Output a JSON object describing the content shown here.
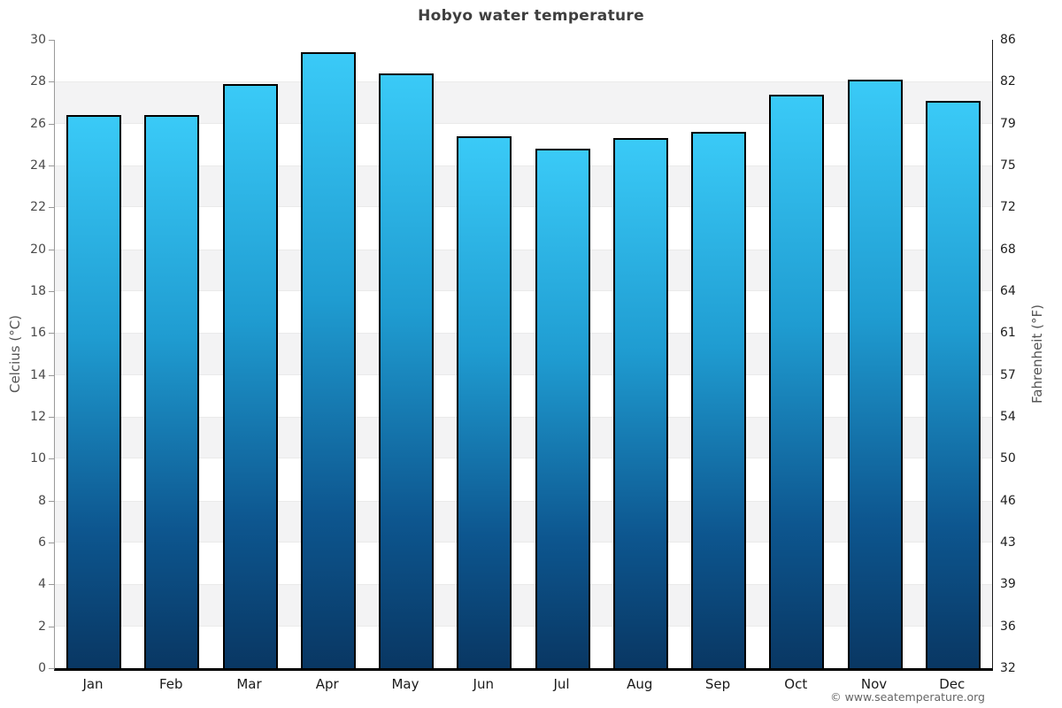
{
  "page": {
    "background": "#ffffff"
  },
  "title": "Hobyo water temperature",
  "footer": {
    "attribution": "© www.seatemperature.org"
  },
  "chart_data": {
    "type": "bar",
    "title": "Hobyo water temperature",
    "categories": [
      "Jan",
      "Feb",
      "Mar",
      "Apr",
      "May",
      "Jun",
      "Jul",
      "Aug",
      "Sep",
      "Oct",
      "Nov",
      "Dec"
    ],
    "series": [
      {
        "name": "Water temperature",
        "unit": "°C",
        "values": [
          26.4,
          26.4,
          27.9,
          29.4,
          28.4,
          25.4,
          24.8,
          25.3,
          25.6,
          27.4,
          28.1,
          27.1
        ]
      }
    ],
    "xlabel": "",
    "ylabel_left": "Celcius (°C)",
    "ylabel_right": "Fahrenheit (°F)",
    "ylim_celsius": [
      0,
      30
    ],
    "yticks_celsius": [
      0,
      2,
      4,
      6,
      8,
      10,
      12,
      14,
      16,
      18,
      20,
      22,
      24,
      26,
      28,
      30
    ],
    "yticks_fahrenheit": [
      32,
      36,
      39,
      43,
      46,
      50,
      54,
      57,
      61,
      64,
      68,
      72,
      75,
      79,
      82,
      86
    ],
    "grid": "alternating-horizontal-bands-every-2C",
    "legend": "none",
    "colors": {
      "bar_gradient_top": "#3acaf7",
      "bar_gradient_mid": "#1f9cd1",
      "bar_gradient_bottom": "#093763",
      "bar_border": "#000000",
      "band_gray": "#f3f3f4",
      "band_white": "#ffffff",
      "axis_left_line": "#9a9a9a",
      "axis_right_line": "#1a1a1a",
      "axis_bottom_line": "#000000",
      "title_color": "#3f3f3f",
      "tick_label_color": "#4a4a4a",
      "month_label_color": "#1a1a1a",
      "axis_title_color": "#555555",
      "footer_color": "#666666"
    }
  }
}
